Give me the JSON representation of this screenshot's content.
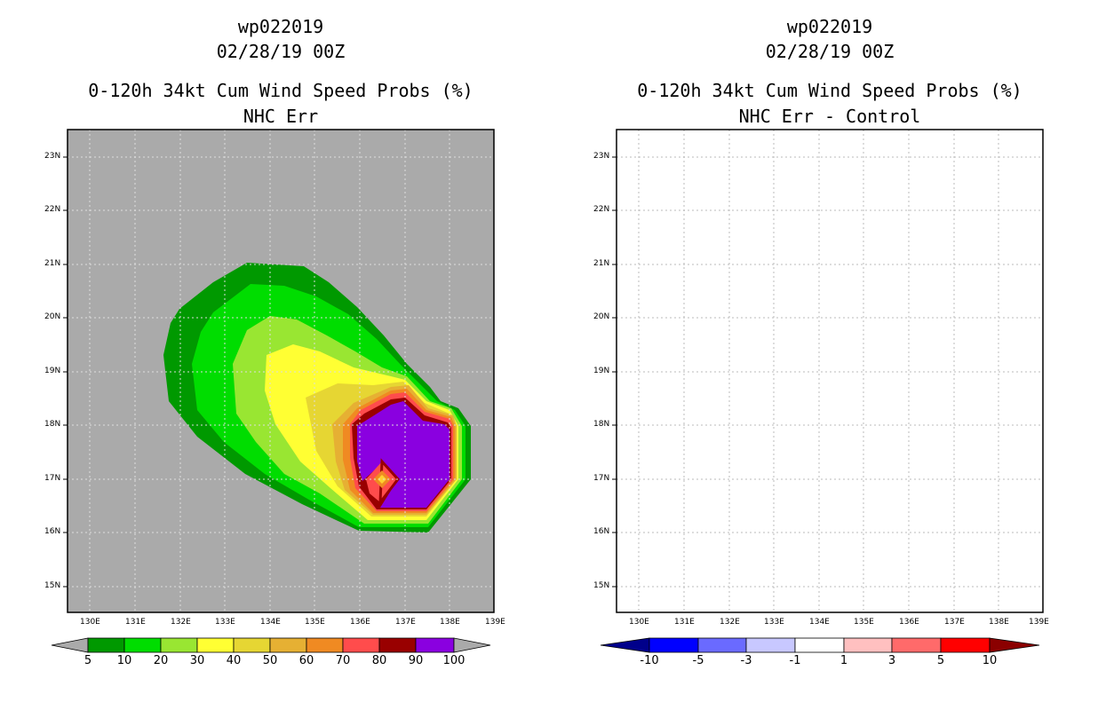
{
  "left_panel": {
    "storm_id": "wp022019",
    "datetime": "02/28/19 00Z",
    "product": "0-120h 34kt Cum Wind Speed Probs (%)",
    "subtitle": "NHC Err",
    "background_color": "#aaaaaa",
    "colorbar": {
      "labels": [
        "5",
        "10",
        "20",
        "30",
        "40",
        "50",
        "60",
        "70",
        "80",
        "90",
        "100"
      ],
      "colors": [
        "#009900",
        "#00dd00",
        "#99e632",
        "#ffff33",
        "#e6d633",
        "#e6b033",
        "#f08a22",
        "#ff4c4c",
        "#990000",
        "#8a00e0"
      ]
    }
  },
  "right_panel": {
    "storm_id": "wp022019",
    "datetime": "02/28/19 00Z",
    "product": "0-120h 34kt Cum Wind Speed Probs (%)",
    "subtitle": "NHC Err - Control",
    "background_color": "#ffffff",
    "colorbar": {
      "labels": [
        "-10",
        "-5",
        "-3",
        "-1",
        "1",
        "3",
        "5",
        "10"
      ],
      "colors": [
        "#00008b",
        "#0000ff",
        "#6a6aff",
        "#c8c8ff",
        "#ffffff",
        "#ffc0c0",
        "#ff6a6a",
        "#ff0000",
        "#8b0000"
      ]
    }
  },
  "axes": {
    "lat_labels": [
      "23N",
      "22N",
      "21N",
      "20N",
      "19N",
      "18N",
      "17N",
      "16N",
      "15N"
    ],
    "lon_labels": [
      "130E",
      "131E",
      "132E",
      "133E",
      "134E",
      "135E",
      "136E",
      "137E",
      "138E",
      "139E"
    ]
  }
}
